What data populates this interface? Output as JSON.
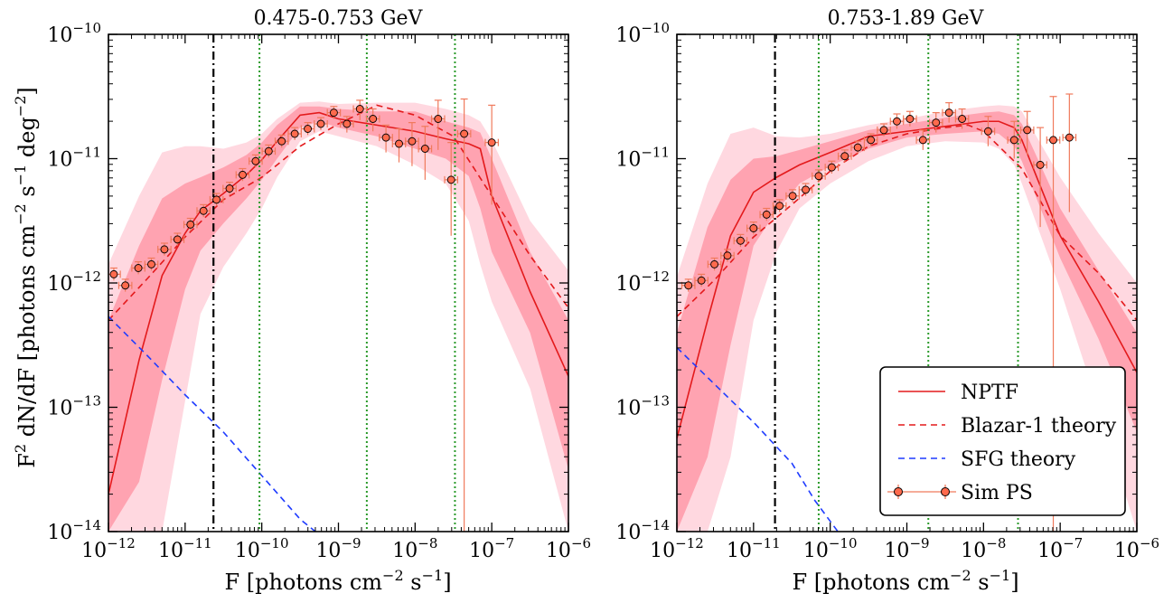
{
  "chart_data": [
    {
      "type": "line",
      "title": "0.475-0.753 GeV",
      "xlabel": "F [photons cm^-2 s^-1]",
      "ylabel": "F^2 dN/dF [photons cm^-2 s^-1 deg^-2]",
      "xscale": "log",
      "yscale": "log",
      "xlim_exp": [
        -12,
        -6
      ],
      "ylim_exp": [
        -14,
        -10
      ],
      "x_tick_labels": [
        "10^-12",
        "10^-11",
        "10^-10",
        "10^-9",
        "10^-8",
        "10^-7",
        "10^-6"
      ],
      "y_tick_labels": [
        "10^-14",
        "10^-13",
        "10^-12",
        "10^-11",
        "10^-10"
      ],
      "vlines": {
        "threshold_dashdot_logF": -10.63,
        "green_dotted_logF": [
          -10.03,
          -8.63,
          -7.48
        ]
      },
      "series": [
        {
          "name": "NPTF",
          "style": "solid red",
          "logx": [
            -12,
            -11.6,
            -11.3,
            -11,
            -10.8,
            -10.5,
            -10.2,
            -10,
            -9.8,
            -9.5,
            -9.25,
            -9,
            -8.5,
            -8,
            -7.6,
            -7.3,
            -7.15,
            -7,
            -6.5,
            -6
          ],
          "logy": [
            -13.7,
            -12.62,
            -11.94,
            -11.6,
            -11.42,
            -11.28,
            -11.13,
            -11.01,
            -10.86,
            -10.65,
            -10.63,
            -10.68,
            -10.73,
            -10.78,
            -10.84,
            -10.88,
            -10.92,
            -11.3,
            -12.07,
            -12.75
          ]
        },
        {
          "name": "NPTF 68% band",
          "style": "band red",
          "logx": [
            -12,
            -11.6,
            -11.3,
            -11,
            -10.8,
            -10.5,
            -10.2,
            -10,
            -9.8,
            -9.5,
            -9.25,
            -9,
            -8.5,
            -8,
            -7.6,
            -7.3,
            -7.15,
            -7,
            -6.5,
            -6
          ],
          "upper_logy": [
            -12.3,
            -11.7,
            -11.32,
            -11.2,
            -11.15,
            -11.07,
            -10.97,
            -10.87,
            -10.73,
            -10.58,
            -10.58,
            -10.6,
            -10.62,
            -10.62,
            -10.7,
            -10.75,
            -10.79,
            -11.0,
            -11.75,
            -12.3
          ],
          "lower_logy": [
            -14.0,
            -13.6,
            -12.78,
            -12.05,
            -11.74,
            -11.52,
            -11.32,
            -11.17,
            -11.0,
            -10.75,
            -10.7,
            -10.75,
            -10.82,
            -10.92,
            -11.0,
            -11.14,
            -11.4,
            -11.75,
            -12.4,
            -13.5
          ]
        },
        {
          "name": "NPTF 95% band",
          "style": "band pink",
          "logx": [
            -12,
            -11.6,
            -11.3,
            -11,
            -10.8,
            -10.5,
            -10.2,
            -10,
            -9.8,
            -9.5,
            -9.25,
            -9,
            -8.5,
            -8,
            -7.6,
            -7.3,
            -7.15,
            -7,
            -6.5,
            -6
          ],
          "upper_logy": [
            -11.85,
            -11.3,
            -10.95,
            -10.9,
            -10.9,
            -10.92,
            -10.87,
            -10.8,
            -10.68,
            -10.55,
            -10.54,
            -10.56,
            -10.55,
            -10.55,
            -10.6,
            -10.65,
            -10.7,
            -10.85,
            -11.5,
            -11.9
          ],
          "lower_logy": [
            -14.0,
            -14.0,
            -14.0,
            -12.95,
            -12.25,
            -11.87,
            -11.6,
            -11.4,
            -11.15,
            -10.86,
            -10.78,
            -10.82,
            -10.9,
            -11.05,
            -11.2,
            -11.5,
            -11.85,
            -12.15,
            -12.85,
            -14.0
          ]
        },
        {
          "name": "Blazar-1 theory",
          "style": "dashed red",
          "logx": [
            -12,
            -11.5,
            -11,
            -10.5,
            -10,
            -9.5,
            -9,
            -8.5,
            -8,
            -7.5,
            -7,
            -6.5,
            -6
          ],
          "logy": [
            -12.3,
            -11.97,
            -11.63,
            -11.33,
            -11.15,
            -10.9,
            -10.72,
            -10.57,
            -10.65,
            -10.82,
            -11.3,
            -11.78,
            -12.2
          ]
        },
        {
          "name": "SFG theory",
          "style": "dashed blue",
          "logx": [
            -12,
            -11.5,
            -11,
            -10.5,
            -10,
            -9.5,
            -9.3
          ],
          "logy": [
            -12.27,
            -12.58,
            -12.9,
            -13.2,
            -13.55,
            -13.9,
            -14.0
          ]
        },
        {
          "name": "Sim PS",
          "style": "points with errorbars",
          "logx": [
            -11.93,
            -11.78,
            -11.61,
            -11.44,
            -11.27,
            -11.1,
            -10.93,
            -10.76,
            -10.59,
            -10.42,
            -10.25,
            -10.08,
            -9.91,
            -9.74,
            -9.57,
            -9.4,
            -9.23,
            -9.06,
            -8.89,
            -8.72,
            -8.55,
            -8.38,
            -8.21,
            -8.04,
            -7.87,
            -7.7,
            -7.53,
            -7.36,
            -7.0
          ],
          "logy": [
            -11.93,
            -12.02,
            -11.88,
            -11.85,
            -11.73,
            -11.65,
            -11.53,
            -11.42,
            -11.33,
            -11.24,
            -11.13,
            -11.02,
            -10.94,
            -10.86,
            -10.8,
            -10.76,
            -10.72,
            -10.63,
            -10.72,
            -10.6,
            -10.68,
            -10.83,
            -10.88,
            -10.86,
            -10.92,
            -10.68,
            -11.17,
            -10.8,
            -10.87
          ],
          "yerr_up": [
            0.05,
            0.05,
            0.05,
            0.05,
            0.05,
            0.05,
            0.05,
            0.05,
            0.05,
            0.05,
            0.05,
            0.05,
            0.05,
            0.05,
            0.05,
            0.05,
            0.05,
            0.05,
            0.06,
            0.07,
            0.08,
            0.1,
            0.12,
            0.15,
            0.18,
            0.15,
            0.3,
            0.28,
            0.3
          ],
          "yerr_down": [
            0.05,
            0.05,
            0.05,
            0.05,
            0.05,
            0.05,
            0.05,
            0.05,
            0.05,
            0.05,
            0.05,
            0.05,
            0.05,
            0.05,
            0.05,
            0.05,
            0.05,
            0.05,
            0.07,
            0.09,
            0.1,
            0.12,
            0.15,
            0.2,
            0.25,
            0.25,
            0.45,
            3.2,
            0.5
          ]
        }
      ]
    },
    {
      "type": "line",
      "title": "0.753-1.89 GeV",
      "xlabel": "F [photons cm^-2 s^-1]",
      "ylabel": "",
      "xscale": "log",
      "yscale": "log",
      "xlim_exp": [
        -12,
        -6
      ],
      "ylim_exp": [
        -14,
        -10
      ],
      "x_tick_labels": [
        "10^-12",
        "10^-11",
        "10^-10",
        "10^-9",
        "10^-8",
        "10^-7",
        "10^-6"
      ],
      "y_tick_labels": [
        "10^-14",
        "10^-13",
        "10^-12",
        "10^-11",
        "10^-10"
      ],
      "vlines": {
        "threshold_dashdot_logF": -10.72,
        "green_dotted_logF": [
          -10.15,
          -8.72,
          -7.55
        ]
      },
      "series": [
        {
          "name": "NPTF",
          "style": "solid red",
          "logx": [
            -12,
            -11.6,
            -11.3,
            -11,
            -10.7,
            -10.4,
            -10,
            -9.5,
            -9,
            -8.5,
            -8,
            -7.8,
            -7.6,
            -7.5,
            -7,
            -6.5,
            -6
          ],
          "logy": [
            -13.25,
            -12.3,
            -11.62,
            -11.27,
            -11.15,
            -11.05,
            -10.95,
            -10.82,
            -10.78,
            -10.74,
            -10.7,
            -10.7,
            -10.75,
            -10.85,
            -11.62,
            -12.15,
            -12.72
          ]
        },
        {
          "name": "NPTF 68% band",
          "style": "band red",
          "logx": [
            -12,
            -11.6,
            -11.3,
            -11,
            -10.7,
            -10.4,
            -10,
            -9.5,
            -9,
            -8.5,
            -8,
            -7.8,
            -7.6,
            -7.5,
            -7,
            -6.5,
            -6
          ],
          "upper_logy": [
            -12.4,
            -11.55,
            -11.17,
            -11.0,
            -10.98,
            -10.93,
            -10.86,
            -10.77,
            -10.72,
            -10.67,
            -10.63,
            -10.62,
            -10.65,
            -10.72,
            -11.4,
            -11.9,
            -12.4
          ],
          "lower_logy": [
            -14.0,
            -13.4,
            -12.5,
            -11.7,
            -11.42,
            -11.2,
            -11.06,
            -10.92,
            -10.83,
            -10.8,
            -10.78,
            -10.8,
            -10.9,
            -11.02,
            -11.8,
            -12.45,
            -13.2
          ]
        },
        {
          "name": "NPTF 95% band",
          "style": "band pink",
          "logx": [
            -12,
            -11.6,
            -11.3,
            -11,
            -10.7,
            -10.4,
            -10,
            -9.5,
            -9,
            -8.5,
            -8,
            -7.8,
            -7.6,
            -7.5,
            -7,
            -6.5,
            -6
          ],
          "upper_logy": [
            -11.95,
            -11.2,
            -10.8,
            -10.75,
            -10.82,
            -10.83,
            -10.8,
            -10.73,
            -10.68,
            -10.62,
            -10.58,
            -10.57,
            -10.58,
            -10.62,
            -11.15,
            -11.6,
            -12.0
          ],
          "lower_logy": [
            -14.0,
            -14.0,
            -13.4,
            -12.3,
            -11.75,
            -11.4,
            -11.2,
            -11.02,
            -10.9,
            -10.86,
            -10.87,
            -10.92,
            -11.05,
            -11.2,
            -12.05,
            -13.0,
            -14.0
          ]
        },
        {
          "name": "Blazar-1 theory",
          "style": "dashed red",
          "logx": [
            -12,
            -11.5,
            -11,
            -10.5,
            -10,
            -9.5,
            -9,
            -8.5,
            -8.2,
            -8,
            -7.5,
            -7,
            -6.5,
            -6
          ],
          "logy": [
            -12.27,
            -11.97,
            -11.63,
            -11.37,
            -11.1,
            -10.9,
            -10.8,
            -10.75,
            -10.73,
            -10.78,
            -11.08,
            -11.62,
            -11.92,
            -12.3
          ]
        },
        {
          "name": "SFG theory",
          "style": "dashed blue",
          "logx": [
            -12,
            -11.5,
            -11,
            -10.5,
            -10.2,
            -9.9
          ],
          "logy": [
            -12.52,
            -12.82,
            -13.12,
            -13.45,
            -13.75,
            -14.0
          ]
        },
        {
          "name": "Sim PS",
          "style": "points with errorbars",
          "logx": [
            -11.85,
            -11.68,
            -11.51,
            -11.34,
            -11.17,
            -11.0,
            -10.83,
            -10.66,
            -10.49,
            -10.32,
            -10.15,
            -9.98,
            -9.81,
            -9.64,
            -9.47,
            -9.3,
            -9.13,
            -8.96,
            -8.79,
            -8.62,
            -8.45,
            -8.28,
            -7.94,
            -7.6,
            -7.43,
            -7.26,
            -7.09,
            -6.88
          ],
          "logy": [
            -12.02,
            -11.98,
            -11.85,
            -11.78,
            -11.66,
            -11.56,
            -11.45,
            -11.38,
            -11.3,
            -11.25,
            -11.14,
            -11.07,
            -10.98,
            -10.91,
            -10.85,
            -10.77,
            -10.7,
            -10.68,
            -10.85,
            -10.71,
            -10.63,
            -10.68,
            -10.78,
            -10.85,
            -10.77,
            -11.05,
            -10.85,
            -10.83
          ],
          "yerr_up": [
            0.05,
            0.05,
            0.05,
            0.05,
            0.05,
            0.05,
            0.05,
            0.05,
            0.05,
            0.05,
            0.05,
            0.05,
            0.05,
            0.05,
            0.05,
            0.05,
            0.06,
            0.06,
            0.08,
            0.08,
            0.08,
            0.08,
            0.12,
            0.15,
            0.15,
            0.3,
            0.35,
            0.35
          ],
          "yerr_down": [
            0.05,
            0.05,
            0.05,
            0.05,
            0.05,
            0.05,
            0.05,
            0.05,
            0.05,
            0.05,
            0.05,
            0.05,
            0.05,
            0.05,
            0.05,
            0.05,
            0.06,
            0.06,
            0.08,
            0.08,
            0.08,
            0.08,
            0.12,
            0.15,
            0.2,
            0.5,
            3.2,
            0.6
          ]
        }
      ]
    }
  ],
  "legend": {
    "items": [
      {
        "label": "NPTF",
        "style": "solid red"
      },
      {
        "label": "Blazar-1 theory",
        "style": "dashed red"
      },
      {
        "label": "SFG theory",
        "style": "dashed blue"
      },
      {
        "label": "Sim PS",
        "style": "points with errorbars"
      }
    ]
  },
  "colors": {
    "nptf": "#e31a1c",
    "band68": "#ff9aa8",
    "band95": "#ffd8e0",
    "blazar": "#e31a1c",
    "sfg": "#1f3cff",
    "point": "#ff6a4d",
    "errorbar": "#f07a5c",
    "threshold": "#000000",
    "green": "#2a9a2a"
  }
}
